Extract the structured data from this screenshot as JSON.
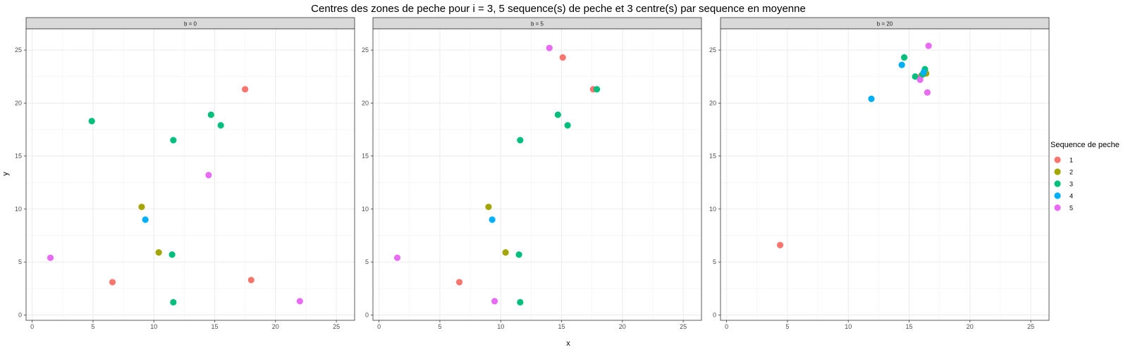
{
  "chart_data": {
    "type": "scatter",
    "title": "Centres des zones de peche pour i = 3, 5 sequence(s) de peche et 3 centre(s) par sequence en moyenne",
    "xlabel": "x",
    "ylabel": "y",
    "xlim": [
      -0.5,
      26.5
    ],
    "ylim": [
      -0.5,
      27
    ],
    "x_ticks": [
      0,
      5,
      10,
      15,
      20,
      25
    ],
    "y_ticks": [
      0,
      5,
      10,
      15,
      20,
      25
    ],
    "grid": true,
    "legend": {
      "title": "Sequence de peche",
      "position": "right",
      "entries": [
        {
          "label": "1",
          "color": "#F8766D"
        },
        {
          "label": "2",
          "color": "#A3A500"
        },
        {
          "label": "3",
          "color": "#00BF7D"
        },
        {
          "label": "4",
          "color": "#00B0F6"
        },
        {
          "label": "5",
          "color": "#E76BF3"
        }
      ]
    },
    "panels": [
      {
        "label": "b = 0",
        "points": [
          {
            "x": 17.5,
            "y": 21.3,
            "series": "1"
          },
          {
            "x": 6.6,
            "y": 3.1,
            "series": "1"
          },
          {
            "x": 18.0,
            "y": 3.3,
            "series": "1"
          },
          {
            "x": 9.0,
            "y": 10.2,
            "series": "2"
          },
          {
            "x": 10.4,
            "y": 5.9,
            "series": "2"
          },
          {
            "x": 4.9,
            "y": 18.3,
            "series": "3"
          },
          {
            "x": 14.7,
            "y": 18.9,
            "series": "3"
          },
          {
            "x": 15.5,
            "y": 17.9,
            "series": "3"
          },
          {
            "x": 11.6,
            "y": 16.5,
            "series": "3"
          },
          {
            "x": 11.5,
            "y": 5.7,
            "series": "3"
          },
          {
            "x": 11.6,
            "y": 1.2,
            "series": "3"
          },
          {
            "x": 9.3,
            "y": 9.0,
            "series": "4"
          },
          {
            "x": 14.5,
            "y": 13.2,
            "series": "5"
          },
          {
            "x": 1.5,
            "y": 5.4,
            "series": "5"
          },
          {
            "x": 22.0,
            "y": 1.3,
            "series": "5"
          }
        ]
      },
      {
        "label": "b = 5",
        "points": [
          {
            "x": 15.1,
            "y": 24.3,
            "series": "1"
          },
          {
            "x": 17.6,
            "y": 21.3,
            "series": "1"
          },
          {
            "x": 6.6,
            "y": 3.1,
            "series": "1"
          },
          {
            "x": 9.0,
            "y": 10.2,
            "series": "2"
          },
          {
            "x": 10.4,
            "y": 5.9,
            "series": "2"
          },
          {
            "x": 17.9,
            "y": 21.3,
            "series": "3"
          },
          {
            "x": 14.7,
            "y": 18.9,
            "series": "3"
          },
          {
            "x": 15.5,
            "y": 17.9,
            "series": "3"
          },
          {
            "x": 11.6,
            "y": 16.5,
            "series": "3"
          },
          {
            "x": 11.5,
            "y": 5.7,
            "series": "3"
          },
          {
            "x": 11.6,
            "y": 1.2,
            "series": "3"
          },
          {
            "x": 9.3,
            "y": 9.0,
            "series": "4"
          },
          {
            "x": 14.0,
            "y": 25.2,
            "series": "5"
          },
          {
            "x": 1.5,
            "y": 5.4,
            "series": "5"
          },
          {
            "x": 9.5,
            "y": 1.3,
            "series": "5"
          }
        ]
      },
      {
        "label": "b = 20",
        "points": [
          {
            "x": 4.4,
            "y": 6.6,
            "series": "1"
          },
          {
            "x": 16.0,
            "y": 22.6,
            "series": "1"
          },
          {
            "x": 16.4,
            "y": 22.8,
            "series": "2"
          },
          {
            "x": 14.6,
            "y": 24.3,
            "series": "3"
          },
          {
            "x": 15.5,
            "y": 22.5,
            "series": "3"
          },
          {
            "x": 16.3,
            "y": 23.2,
            "series": "3"
          },
          {
            "x": 16.1,
            "y": 22.7,
            "series": "3"
          },
          {
            "x": 14.4,
            "y": 23.6,
            "series": "4"
          },
          {
            "x": 11.9,
            "y": 20.4,
            "series": "4"
          },
          {
            "x": 16.2,
            "y": 22.9,
            "series": "4"
          },
          {
            "x": 16.6,
            "y": 25.4,
            "series": "5"
          },
          {
            "x": 16.5,
            "y": 21.0,
            "series": "5"
          },
          {
            "x": 15.9,
            "y": 22.2,
            "series": "5"
          }
        ]
      }
    ]
  }
}
